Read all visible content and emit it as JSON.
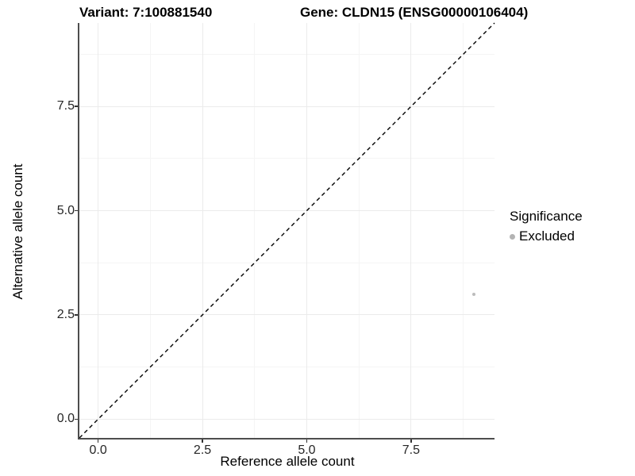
{
  "titles": {
    "variant": "Variant: 7:100881540",
    "gene": "Gene: CLDN15 (ENSG00000106404)"
  },
  "legend": {
    "title": "Significance",
    "items": [
      {
        "label": "Excluded",
        "color": "#b3b3b3"
      }
    ]
  },
  "colors": {
    "axis_line": "#4d4d4d",
    "grid_major": "#ebebeb",
    "grid_minor": "#f5f5f5",
    "point": "#bcbcbc",
    "reference_line": "#000000"
  },
  "chart_data": {
    "type": "scatter",
    "title": "Variant: 7:100881540 | Gene: CLDN15 (ENSG00000106404)",
    "xlabel": "Reference allele count",
    "ylabel": "Alternative allele count",
    "xlim": [
      -0.45,
      9.5
    ],
    "ylim": [
      -0.45,
      9.5
    ],
    "x_ticks": [
      0,
      2.5,
      5,
      7.5
    ],
    "y_ticks": [
      0,
      2.5,
      5,
      7.5
    ],
    "x_tick_labels": [
      "0.0",
      "2.5",
      "5.0",
      "7.5"
    ],
    "y_tick_labels": [
      "0.0",
      "2.5",
      "5.0",
      "7.5"
    ],
    "x_minor_ticks": [
      1.25,
      3.75,
      6.25,
      8.75
    ],
    "y_minor_ticks": [
      1.25,
      3.75,
      6.25,
      8.75
    ],
    "grid": true,
    "legend_position": "right",
    "legend_title": "Significance",
    "series": [
      {
        "name": "Excluded",
        "color": "#bcbcbc",
        "points": [
          {
            "x": 9,
            "y": 3
          }
        ]
      }
    ],
    "reference_line": {
      "kind": "identity",
      "style": "dashed",
      "color": "#000000"
    }
  }
}
